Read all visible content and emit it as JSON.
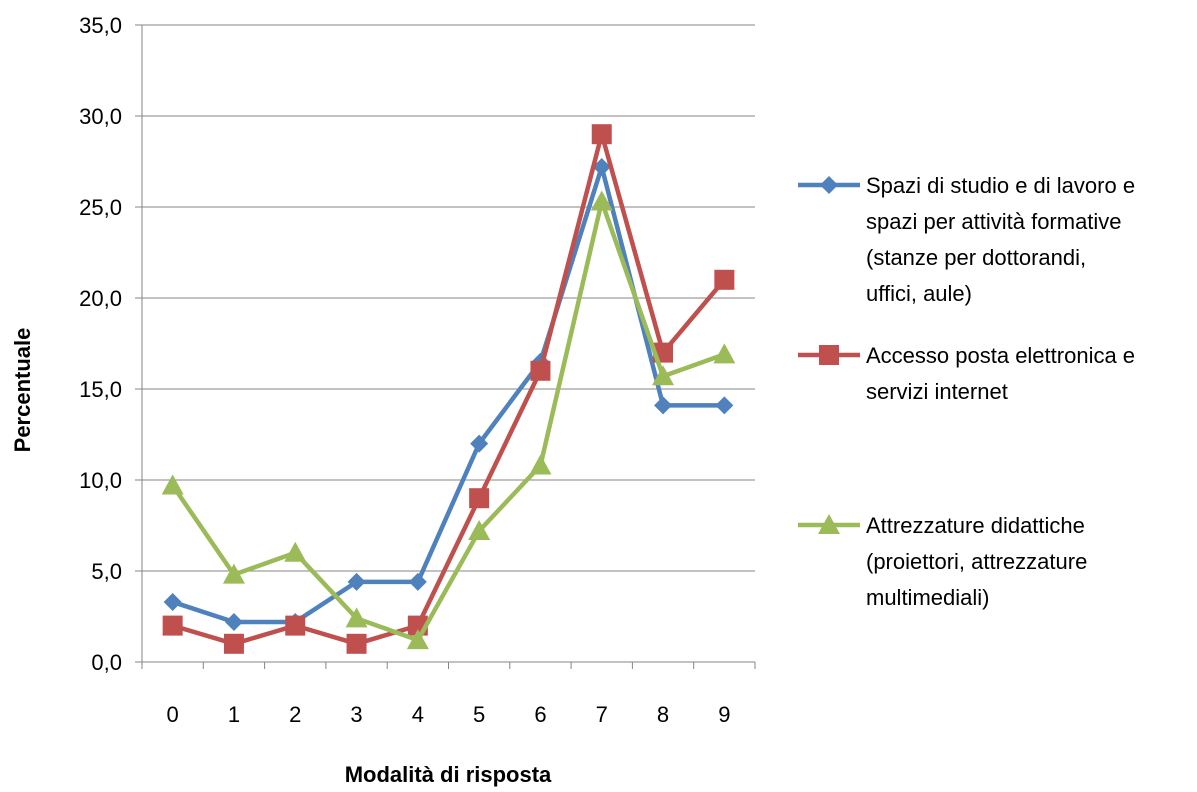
{
  "chart_data": {
    "type": "line",
    "title": "",
    "xlabel": "Modalità di risposta",
    "ylabel": "Percentuale",
    "categories": [
      "0",
      "1",
      "2",
      "3",
      "4",
      "5",
      "6",
      "7",
      "8",
      "9"
    ],
    "ylim": [
      0,
      35
    ],
    "y_ticks": [
      "0,0",
      "5,0",
      "10,0",
      "15,0",
      "20,0",
      "25,0",
      "30,0",
      "35,0"
    ],
    "grid": "horizontal",
    "legend_position": "right",
    "series": [
      {
        "name": "Spazi di studio e di lavoro e spazi per attività formative (stanze per dottorandi, uffici, aule)",
        "legend_lines": [
          "Spazi di studio e di lavoro e",
          "spazi per attività formative",
          "(stanze per dottorandi,",
          "uffici, aule)"
        ],
        "color": "#4f81bd",
        "marker": "diamond",
        "values": [
          3.3,
          2.2,
          2.2,
          4.4,
          4.4,
          12.0,
          16.5,
          27.2,
          14.1,
          14.1
        ]
      },
      {
        "name": "Accesso posta elettronica e servizi internet",
        "legend_lines": [
          "Accesso posta elettronica e",
          "servizi internet"
        ],
        "color": "#c0504d",
        "marker": "square",
        "values": [
          2.0,
          1.0,
          2.0,
          1.0,
          2.0,
          9.0,
          16.0,
          29.0,
          17.0,
          21.0
        ]
      },
      {
        "name": "Attrezzature didattiche (proiettori, attrezzature multimediali)",
        "legend_lines": [
          "Attrezzature didattiche",
          "(proiettori, attrezzature",
          "multimediali)"
        ],
        "color": "#9bbb59",
        "marker": "triangle",
        "values": [
          9.7,
          4.8,
          6.0,
          2.4,
          1.2,
          7.2,
          10.8,
          25.3,
          15.7,
          16.9
        ]
      }
    ]
  }
}
